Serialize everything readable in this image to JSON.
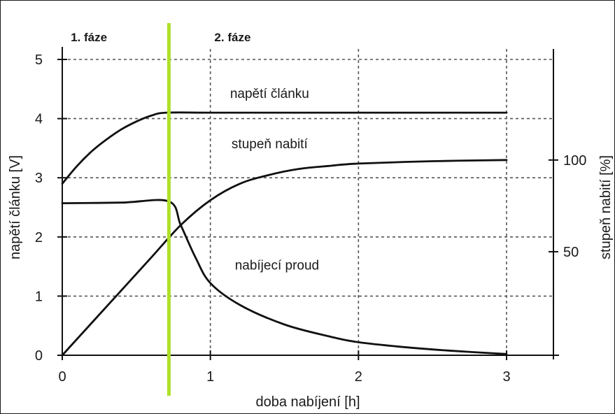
{
  "chart_data": {
    "type": "line",
    "title": "",
    "xlabel": "doba nabíjení [h]",
    "ylabel": "napětí článku [V]",
    "y2label": "stupeň nabití [%]",
    "xlim": [
      0,
      3.5
    ],
    "ylim": [
      0,
      5
    ],
    "y2_reference": [
      {
        "label": "100",
        "y_on_left_axis": 3.3
      },
      {
        "label": "50",
        "y_on_left_axis": 1.75
      }
    ],
    "x_ticks": [
      "0",
      "1",
      "2",
      "3"
    ],
    "y_ticks": [
      "0",
      "1",
      "2",
      "3",
      "4",
      "5"
    ],
    "y2_ticks": [
      "50",
      "100"
    ],
    "grid": true,
    "phase_divider": {
      "x": 0.72,
      "color": "#aee02a"
    },
    "phases": [
      {
        "label": "1. fáze",
        "x": 0.18
      },
      {
        "label": "2. fáze",
        "x": 1.15
      }
    ],
    "series": [
      {
        "name": "napětí článku",
        "x": [
          0,
          0.1,
          0.2,
          0.3,
          0.4,
          0.5,
          0.6,
          0.7,
          1.0,
          1.5,
          2.0,
          2.5,
          3.0
        ],
        "y": [
          2.9,
          3.2,
          3.45,
          3.65,
          3.82,
          3.95,
          4.05,
          4.1,
          4.1,
          4.1,
          4.1,
          4.1,
          4.1
        ],
        "label_at": [
          1.4,
          4.35
        ]
      },
      {
        "name": "stupeň nabití",
        "x": [
          0,
          0.2,
          0.4,
          0.6,
          0.8,
          1.0,
          1.2,
          1.4,
          1.6,
          1.8,
          2.0,
          2.5,
          3.0
        ],
        "y": [
          0,
          0.55,
          1.1,
          1.65,
          2.2,
          2.62,
          2.9,
          3.05,
          3.15,
          3.2,
          3.24,
          3.28,
          3.3
        ],
        "label_at": [
          1.4,
          3.5
        ]
      },
      {
        "name": "nabíjecí proud",
        "x": [
          0,
          0.4,
          0.72,
          0.8,
          0.9,
          1.0,
          1.2,
          1.5,
          1.8,
          2.0,
          2.3,
          2.6,
          3.0
        ],
        "y": [
          2.57,
          2.58,
          2.6,
          2.2,
          1.65,
          1.22,
          0.85,
          0.52,
          0.32,
          0.22,
          0.14,
          0.08,
          0.02
        ],
        "label_at": [
          1.45,
          1.45
        ]
      }
    ],
    "colors": {
      "curve": "#111111",
      "grid": "#555555",
      "divider": "#aee02a"
    }
  }
}
